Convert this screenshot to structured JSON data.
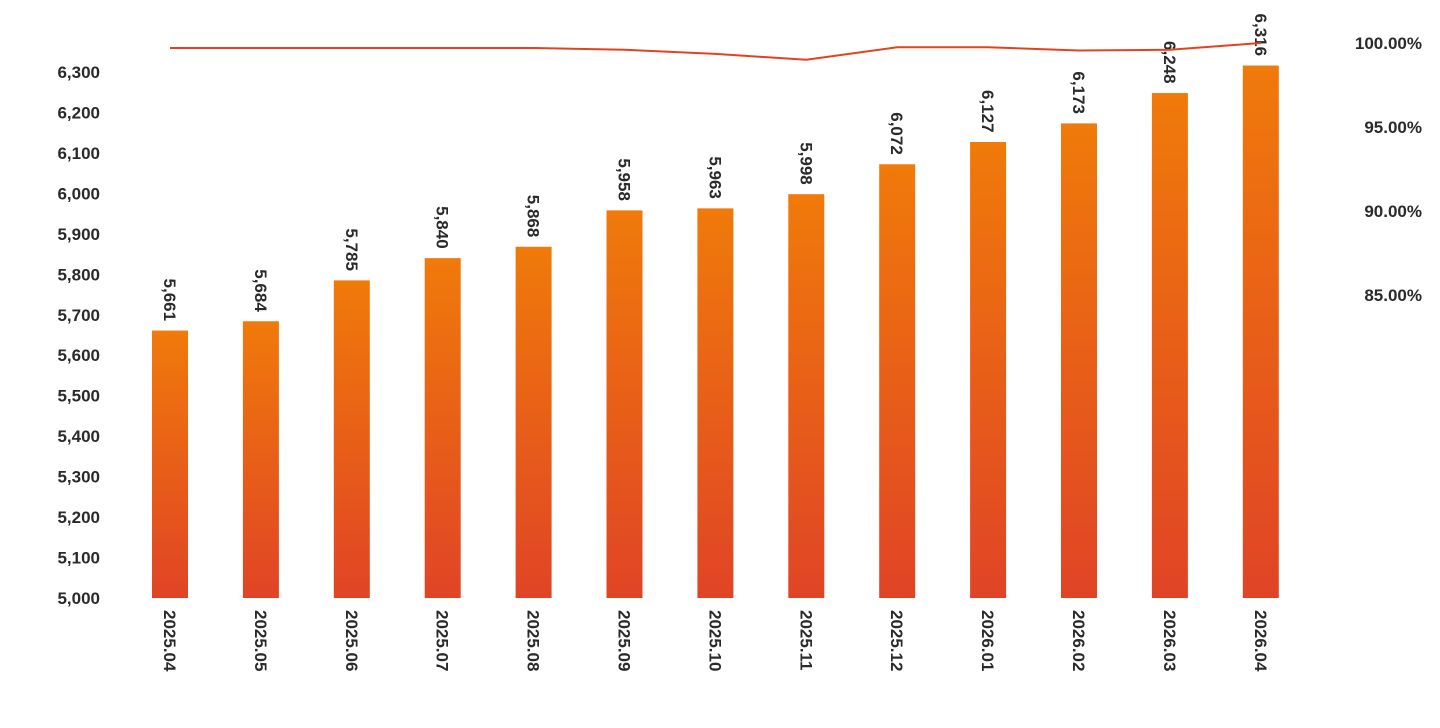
{
  "chart_data": {
    "type": "bar",
    "categories": [
      "2025.04",
      "2025.05",
      "2025.06",
      "2025.07",
      "2025.08",
      "2025.09",
      "2025.10",
      "2025.11",
      "2025.12",
      "2026.01",
      "2026.02",
      "2026.03",
      "2026.04"
    ],
    "series": [
      {
        "type": "bar",
        "axis": "left",
        "values": [
          5661,
          5684,
          5785,
          5840,
          5868,
          5958,
          5963,
          5998,
          6072,
          6127,
          6173,
          6248,
          6316
        ],
        "data_labels": [
          "5,661",
          "5,684",
          "5,785",
          "5,840",
          "5,868",
          "5,958",
          "5,963",
          "5,998",
          "6,072",
          "6,127",
          "6,173",
          "6,248",
          "6,316"
        ],
        "color_top": "#f07a0a",
        "color_bottom": "#e04426"
      },
      {
        "type": "line",
        "axis": "right",
        "values": [
          99.7,
          99.7,
          99.7,
          99.7,
          99.7,
          99.6,
          99.35,
          99.0,
          99.75,
          99.75,
          99.55,
          99.6,
          100.0
        ],
        "color": "#e0441e"
      }
    ],
    "y_left": {
      "ylim": [
        5000,
        6300
      ],
      "ticks": [
        5000,
        5100,
        5200,
        5300,
        5400,
        5500,
        5600,
        5700,
        5800,
        5900,
        6000,
        6100,
        6200,
        6300
      ],
      "tick_labels": [
        "5,000",
        "5,100",
        "5,200",
        "5,300",
        "5,400",
        "5,500",
        "5,600",
        "5,700",
        "5,800",
        "5,900",
        "6,000",
        "6,100",
        "6,200",
        "6,300"
      ]
    },
    "y_right": {
      "ticks": [
        85,
        90,
        95,
        100
      ],
      "tick_labels": [
        "85.00%",
        "90.00%",
        "95.00%",
        "100.00%"
      ]
    },
    "grid": false,
    "legend": "none"
  }
}
